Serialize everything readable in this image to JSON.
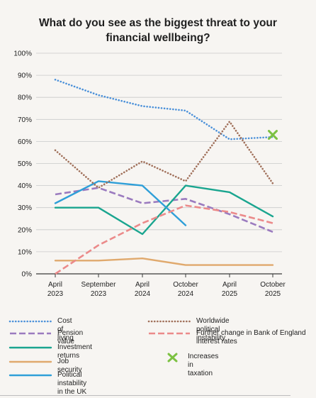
{
  "title_line1": "What do you see as the biggest threat to your",
  "title_line2": "financial wellbeing?",
  "chart_data": {
    "type": "line",
    "title": "What do you see as the biggest threat to your financial wellbeing?",
    "categories": [
      [
        "April",
        "2023"
      ],
      [
        "September",
        "2023"
      ],
      [
        "April",
        "2024"
      ],
      [
        "October",
        "2024"
      ],
      [
        "April",
        "2025"
      ],
      [
        "October",
        "2025"
      ]
    ],
    "y_ticks": [
      "0%",
      "10%",
      "20%",
      "30%",
      "40%",
      "50%",
      "60%",
      "70%",
      "80%",
      "90%",
      "100%"
    ],
    "ylim": [
      0,
      100
    ],
    "grid": "horizontal",
    "legend_position": "bottom",
    "series": [
      {
        "name": "Cost of living",
        "color": "#4a90d9",
        "style": "dotted",
        "values": [
          88,
          81,
          76,
          74,
          61,
          62
        ]
      },
      {
        "name": "Pension value",
        "color": "#9b7bbf",
        "style": "dashed",
        "values": [
          36,
          39,
          32,
          34,
          27,
          19
        ]
      },
      {
        "name": "Investment returns",
        "color": "#1aa58f",
        "style": "solid",
        "values": [
          30,
          30,
          18,
          40,
          37,
          26
        ]
      },
      {
        "name": "Job security",
        "color": "#e0a96d",
        "style": "solid",
        "values": [
          6,
          6,
          7,
          4,
          4,
          4
        ]
      },
      {
        "name": "Political instability in the UK",
        "color": "#2f9fd8",
        "style": "solid",
        "values": [
          32,
          42,
          40,
          22,
          null,
          null
        ]
      },
      {
        "name": "Worldwide political instability",
        "color": "#a0705a",
        "style": "dotted",
        "values": [
          56,
          39,
          51,
          42,
          69,
          41
        ]
      },
      {
        "name": "Further change in Bank of England interest rates",
        "color": "#eb8a8a",
        "style": "dashed",
        "values": [
          0,
          13,
          23,
          31,
          28,
          23
        ]
      },
      {
        "name": "Increases in taxation",
        "color": "#7cc142",
        "style": "marker",
        "values": [
          null,
          null,
          null,
          null,
          null,
          63
        ]
      }
    ]
  },
  "legend": [
    {
      "label": "Cost of living"
    },
    {
      "label": "Pension value"
    },
    {
      "label": "Investment returns"
    },
    {
      "label": "Job security"
    },
    {
      "label": "Political instability in the UK"
    },
    {
      "label": "Worldwide political instability"
    },
    {
      "label": "Further change in Bank of England interest rates"
    },
    {
      "label": "Increases in taxation"
    }
  ]
}
